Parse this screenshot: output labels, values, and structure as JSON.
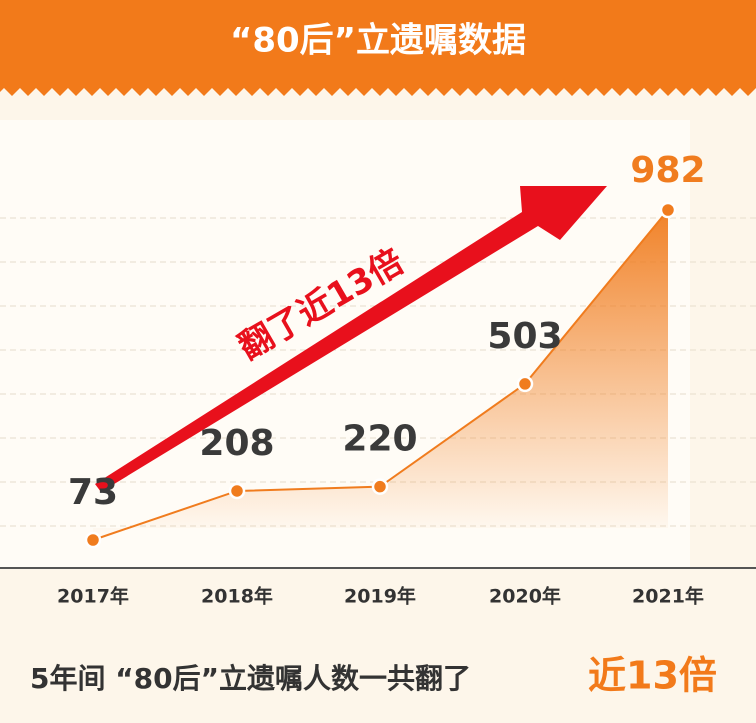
{
  "chart_data": {
    "type": "line",
    "title": "“80后”立遗嘱数据",
    "categories": [
      "2017年",
      "2018年",
      "2019年",
      "2020年",
      "2021年"
    ],
    "values": [
      73,
      208,
      220,
      503,
      982
    ],
    "color": "#f07c1e",
    "annotation": "翻了近13倍",
    "footer": "5年间 “80后”立遗嘱人数一共翻了",
    "footer_highlight": "近13倍"
  }
}
